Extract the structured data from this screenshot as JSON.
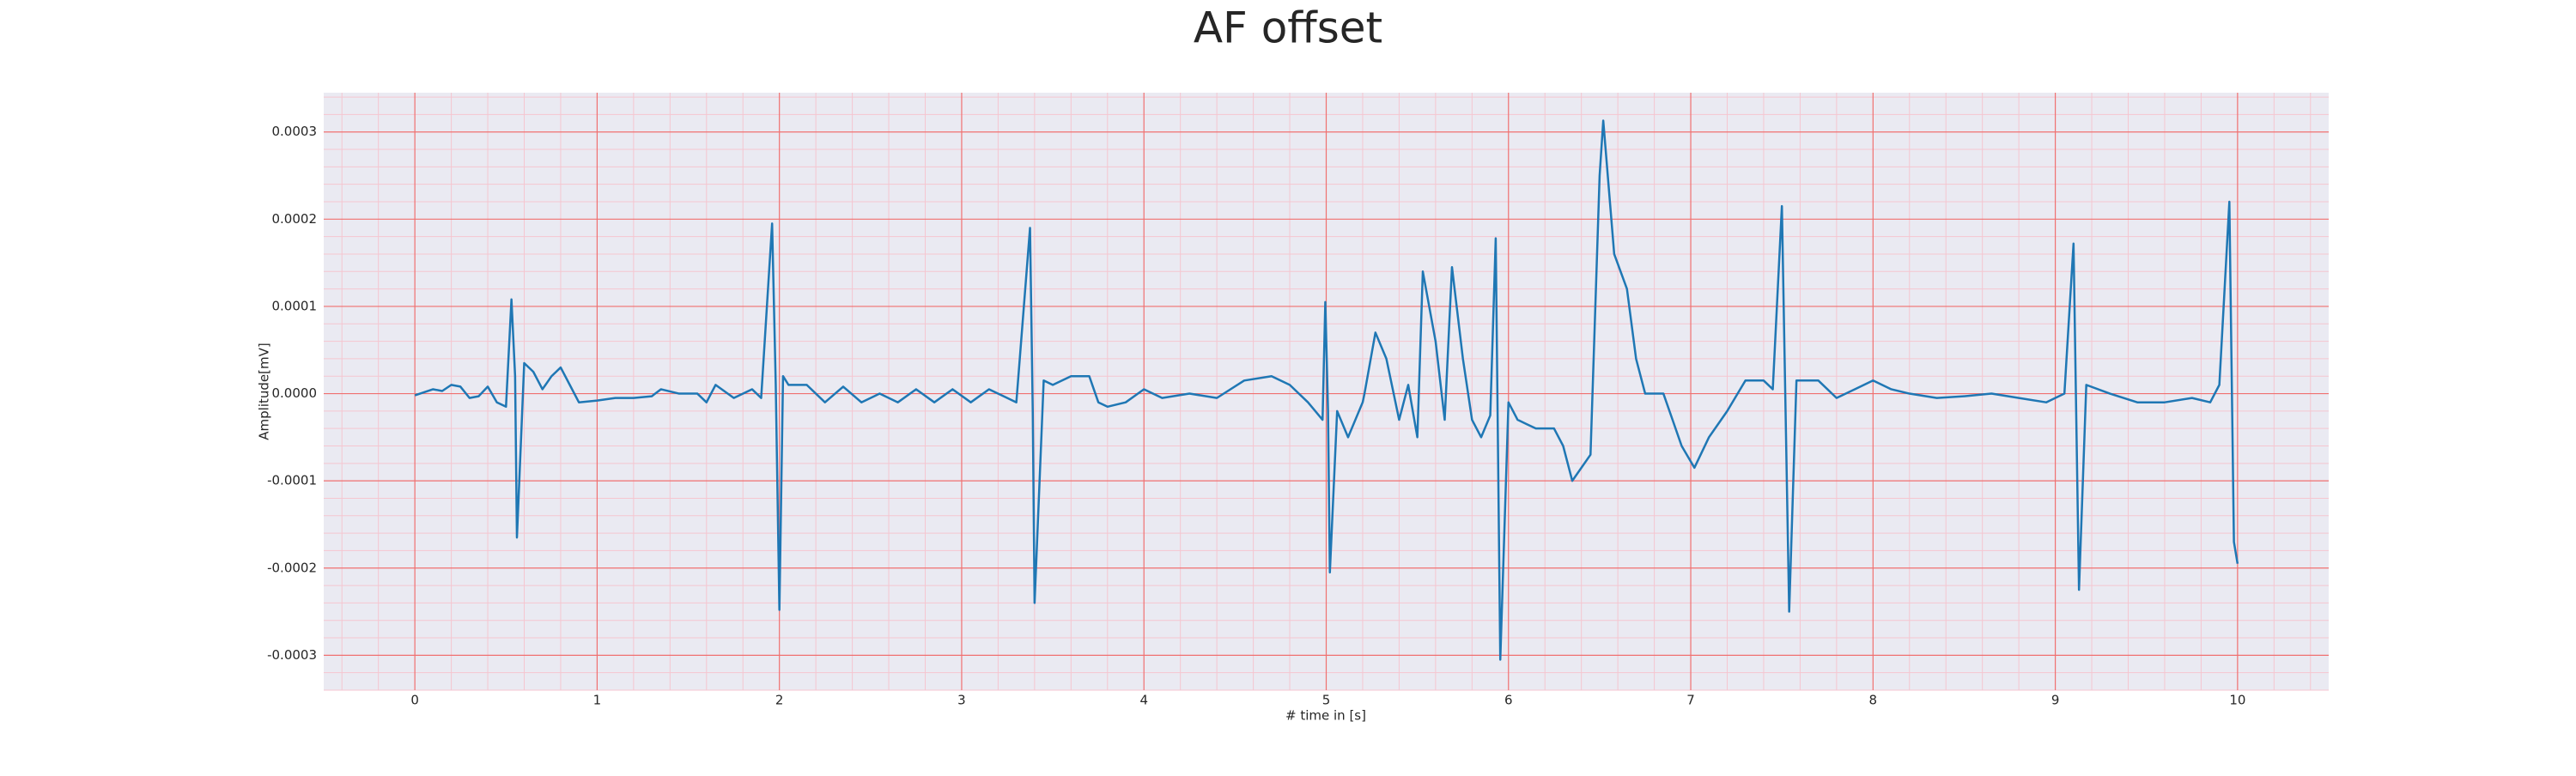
{
  "chart_data": {
    "type": "line",
    "title": "AF offset",
    "xlabel": "# time in [s]",
    "ylabel": "Amplitude[mV]",
    "color": "#1f77b4",
    "grid": true,
    "grid_color": "#f07070",
    "minor_grid": true,
    "minor_grid_color": "#f5c6d0",
    "xlim": [
      -0.5,
      10.5
    ],
    "ylim": [
      -0.00034,
      0.000345
    ],
    "xticks": [
      0,
      1,
      2,
      3,
      4,
      5,
      6,
      7,
      8,
      9,
      10
    ],
    "yticks": [
      {
        "value": -0.0003,
        "label": "-0.0003"
      },
      {
        "value": -0.0002,
        "label": "-0.0002"
      },
      {
        "value": -0.0001,
        "label": "-0.0001"
      },
      {
        "value": 0,
        "label": "0.0000"
      },
      {
        "value": 0.0001,
        "label": "0.0001"
      },
      {
        "value": 0.0002,
        "label": "0.0002"
      },
      {
        "value": 0.0003,
        "label": "0.0003"
      }
    ],
    "x": [
      0,
      0.1,
      0.15,
      0.2,
      0.25,
      0.3,
      0.35,
      0.4,
      0.45,
      0.5,
      0.53,
      0.55,
      0.56,
      0.6,
      0.65,
      0.7,
      0.75,
      0.8,
      0.85,
      0.9,
      1.0,
      1.1,
      1.2,
      1.3,
      1.35,
      1.45,
      1.55,
      1.6,
      1.65,
      1.75,
      1.85,
      1.9,
      1.96,
      1.98,
      2.0,
      2.02,
      2.05,
      2.15,
      2.25,
      2.35,
      2.45,
      2.55,
      2.65,
      2.75,
      2.85,
      2.95,
      3.05,
      3.15,
      3.25,
      3.3,
      3.375,
      3.39,
      3.4,
      3.45,
      3.5,
      3.6,
      3.7,
      3.75,
      3.8,
      3.9,
      4.0,
      4.1,
      4.25,
      4.4,
      4.55,
      4.7,
      4.8,
      4.9,
      4.98,
      4.995,
      5.01,
      5.02,
      5.06,
      5.12,
      5.2,
      5.21,
      5.27,
      5.33,
      5.4,
      5.45,
      5.5,
      5.53,
      5.6,
      5.65,
      5.69,
      5.75,
      5.8,
      5.85,
      5.9,
      5.93,
      5.955,
      6.0,
      6.05,
      6.15,
      6.25,
      6.3,
      6.35,
      6.45,
      6.5,
      6.52,
      6.58,
      6.65,
      6.7,
      6.75,
      6.85,
      6.9,
      6.95,
      7.02,
      7.1,
      7.2,
      7.3,
      7.4,
      7.45,
      7.5,
      7.54,
      7.58,
      7.7,
      7.8,
      7.9,
      8.0,
      8.1,
      8.2,
      8.35,
      8.5,
      8.65,
      8.8,
      8.95,
      9.05,
      9.1,
      9.13,
      9.17,
      9.3,
      9.45,
      9.6,
      9.75,
      9.85,
      9.9,
      9.955,
      9.98,
      10.0
    ],
    "values": [
      -2e-06,
      5e-06,
      3e-06,
      1e-05,
      8e-06,
      -5e-06,
      -3e-06,
      8e-06,
      -1e-05,
      -1.5e-05,
      0.000108,
      2e-05,
      -0.000165,
      3.5e-05,
      2.5e-05,
      5e-06,
      2e-05,
      3e-05,
      1e-05,
      -1e-05,
      -8e-06,
      -5e-06,
      -5e-06,
      -3e-06,
      5e-06,
      0,
      0,
      -1e-05,
      1e-05,
      -5e-06,
      5e-06,
      -5e-06,
      0.000195,
      1e-05,
      -0.000248,
      2e-05,
      1e-05,
      1e-05,
      -1e-05,
      8e-06,
      -1e-05,
      0,
      -1e-05,
      5e-06,
      -1e-05,
      5e-06,
      -1e-05,
      5e-06,
      -5e-06,
      -1e-05,
      0.00019,
      -2e-05,
      -0.00024,
      1.5e-05,
      1e-05,
      2e-05,
      2e-05,
      -1e-05,
      -1.5e-05,
      -1e-05,
      5e-06,
      -5e-06,
      0,
      -5e-06,
      1.5e-05,
      2e-05,
      1e-05,
      -1e-05,
      -3e-05,
      0.000105,
      -2e-05,
      -0.000205,
      -2e-05,
      -5e-05,
      -1e-05,
      0,
      7e-05,
      4e-05,
      -3e-05,
      1e-05,
      -5e-05,
      0.00014,
      6e-05,
      -3e-05,
      0.000145,
      4e-05,
      -3e-05,
      -5e-05,
      -2.5e-05,
      0.000178,
      -0.000305,
      -1e-05,
      -3e-05,
      -4e-05,
      -4e-05,
      -6e-05,
      -0.0001,
      -7e-05,
      0.00025,
      0.000313,
      0.00016,
      0.00012,
      4e-05,
      0,
      0,
      -3e-05,
      -6e-05,
      -8.5e-05,
      -5e-05,
      -2e-05,
      1.5e-05,
      1.5e-05,
      5e-06,
      0.000215,
      -0.00025,
      1.5e-05,
      1.5e-05,
      -5e-06,
      5e-06,
      1.5e-05,
      5e-06,
      0,
      -5e-06,
      -3e-06,
      0,
      -5e-06,
      -1e-05,
      0,
      0.000172,
      -0.000225,
      1e-05,
      0,
      -1e-05,
      -1e-05,
      -5e-06,
      -1e-05,
      1e-05,
      0.00022,
      -0.00017,
      -0.000195
    ]
  }
}
